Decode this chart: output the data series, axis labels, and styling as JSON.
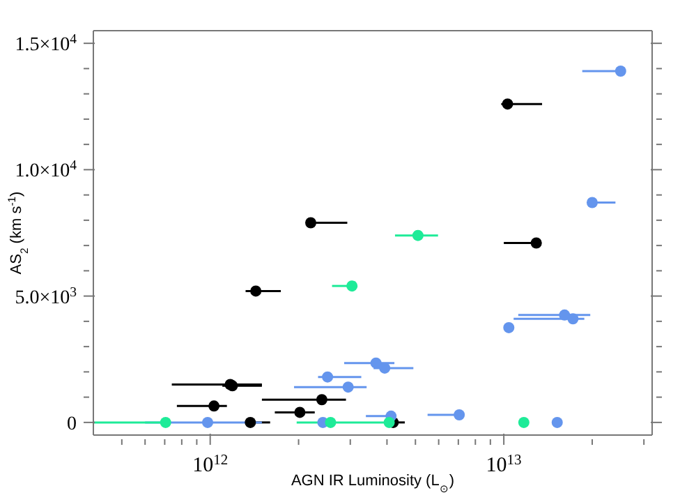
{
  "chart_data": {
    "type": "scatter",
    "xlabel": "AGN IR Luminosity (L$_{⊙}$)",
    "ylabel": "AS$_{2}$ (km s$^{-1}$)",
    "log": "x",
    "marker": "circle",
    "xlim": [
      400000000000.0,
      32000000000000.0
    ],
    "ylim": [
      -500,
      15500
    ],
    "xticks": [
      {
        "value": 500000000000.0,
        "label": null
      },
      {
        "value": 600000000000.0,
        "label": null
      },
      {
        "value": 700000000000.0,
        "label": null
      },
      {
        "value": 800000000000.0,
        "label": null
      },
      {
        "value": 900000000000.0,
        "label": null
      },
      {
        "value": 1000000000000.0,
        "label": "10$^{12}$"
      },
      {
        "value": 2000000000000.0,
        "label": null
      },
      {
        "value": 3000000000000.0,
        "label": null
      },
      {
        "value": 4000000000000.0,
        "label": null
      },
      {
        "value": 5000000000000.0,
        "label": null
      },
      {
        "value": 6000000000000.0,
        "label": null
      },
      {
        "value": 7000000000000.0,
        "label": null
      },
      {
        "value": 8000000000000.0,
        "label": null
      },
      {
        "value": 9000000000000.0,
        "label": null
      },
      {
        "value": 10000000000000.0,
        "label": "10$^{13}$"
      },
      {
        "value": 20000000000000.0,
        "label": null
      },
      {
        "value": 30000000000000.0,
        "label": null
      }
    ],
    "yticks": [
      {
        "value": 0,
        "label": "0"
      },
      {
        "value": 1000,
        "label": null
      },
      {
        "value": 2000,
        "label": null
      },
      {
        "value": 3000,
        "label": null
      },
      {
        "value": 4000,
        "label": null
      },
      {
        "value": 5000,
        "label": "5.0×10$^{3}$"
      },
      {
        "value": 6000,
        "label": null
      },
      {
        "value": 7000,
        "label": null
      },
      {
        "value": 8000,
        "label": null
      },
      {
        "value": 9000,
        "label": null
      },
      {
        "value": 10000,
        "label": "1.0×10$^{4}$"
      },
      {
        "value": 11000,
        "label": null
      },
      {
        "value": 12000,
        "label": null
      },
      {
        "value": 13000,
        "label": null
      },
      {
        "value": 14000,
        "label": null
      },
      {
        "value": 15000,
        "label": "1.5×10$^{4}$"
      }
    ],
    "series": [
      {
        "color": "#000000",
        "x": [
          10300000000000.0,
          2200000000000.0,
          12900000000000.0,
          1430000000000.0,
          1170000000000.0,
          1190000000000.0,
          1030000000000.0,
          1370000000000.0,
          2020000000000.0,
          2400000000000.0,
          4200000000000.0
        ],
        "values": [
          12600,
          7900,
          7100,
          5200,
          1500,
          1450,
          650,
          0,
          400,
          900,
          0
        ],
        "xerrors": [
          [
            9800000000000.0,
            13500000000000.0
          ],
          [
            2200000000000.0,
            2930000000000.0
          ],
          [
            10000000000000.0,
            12900000000000.0
          ],
          [
            1320000000000.0,
            1740000000000.0
          ],
          [
            740000000000.0,
            1500000000000.0
          ],
          [
            1100000000000.0,
            1500000000000.0
          ],
          [
            770000000000.0,
            1140000000000.0
          ],
          [
            1370000000000.0,
            1600000000000.0
          ],
          [
            1660000000000.0,
            2270000000000.0
          ],
          [
            1500000000000.0,
            2900000000000.0
          ],
          [
            4200000000000.0,
            4600000000000.0
          ]
        ]
      },
      {
        "color": "#6495ed",
        "x": [
          25000000000000.0,
          20000000000000.0,
          10400000000000.0,
          16100000000000.0,
          17200000000000.0,
          3670000000000.0,
          3930000000000.0,
          2510000000000.0,
          2950000000000.0,
          980000000000.0,
          2420000000000.0,
          4130000000000.0,
          7050000000000.0,
          15200000000000.0
        ],
        "values": [
          13900,
          8700,
          3750,
          4250,
          4100,
          2350,
          2150,
          1800,
          1400,
          0,
          0,
          250,
          300,
          0
        ],
        "xerrors": [
          [
            18500000000000.0,
            25000000000000.0
          ],
          [
            20000000000000.0,
            24000000000000.0
          ],
          null,
          [
            11200000000000.0,
            19700000000000.0
          ],
          [
            10800000000000.0,
            18800000000000.0
          ],
          [
            2860000000000.0,
            4240000000000.0
          ],
          [
            3600000000000.0,
            4920000000000.0
          ],
          [
            2330000000000.0,
            3270000000000.0
          ],
          [
            1930000000000.0,
            3410000000000.0
          ],
          [
            600000000000.0,
            1500000000000.0
          ],
          null,
          [
            3390000000000.0,
            4130000000000.0
          ],
          [
            5500000000000.0,
            7050000000000.0
          ],
          null
        ]
      },
      {
        "color": "#1eeb98",
        "x": [
          5100000000000.0,
          3040000000000.0,
          705000000000.0,
          2570000000000.0,
          4070000000000.0,
          11700000000000.0
        ],
        "values": [
          7400,
          5400,
          0,
          0,
          0,
          0
        ],
        "xerrors": [
          [
            4260000000000.0,
            5970000000000.0
          ],
          [
            2600000000000.0,
            3040000000000.0
          ],
          [
            400000000000.0,
            705000000000.0
          ],
          [
            1970000000000.0,
            2570000000000.0
          ],
          [
            2620000000000.0,
            4070000000000.0
          ],
          null
        ]
      }
    ]
  }
}
